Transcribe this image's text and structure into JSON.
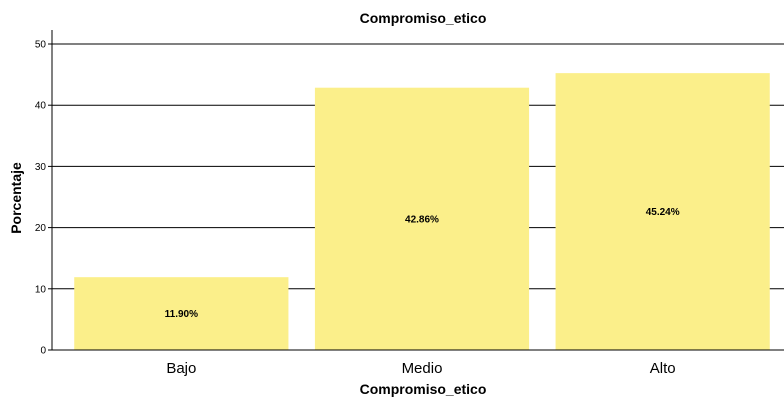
{
  "chart_data": {
    "type": "bar",
    "title": "Compromiso_etico",
    "xlabel": "Compromiso_etico",
    "ylabel": "Porcentaje",
    "categories": [
      "Bajo",
      "Medio",
      "Alto"
    ],
    "values": [
      11.9,
      42.86,
      45.24
    ],
    "data_labels": [
      "11.90%",
      "42.86%",
      "45.24%"
    ],
    "ylim": [
      0,
      50
    ],
    "yticks": [
      "0",
      "10",
      "20",
      "30",
      "40",
      "50"
    ],
    "grid": true,
    "bar_color": "#fbef8a",
    "gridline_color": "#000000"
  }
}
